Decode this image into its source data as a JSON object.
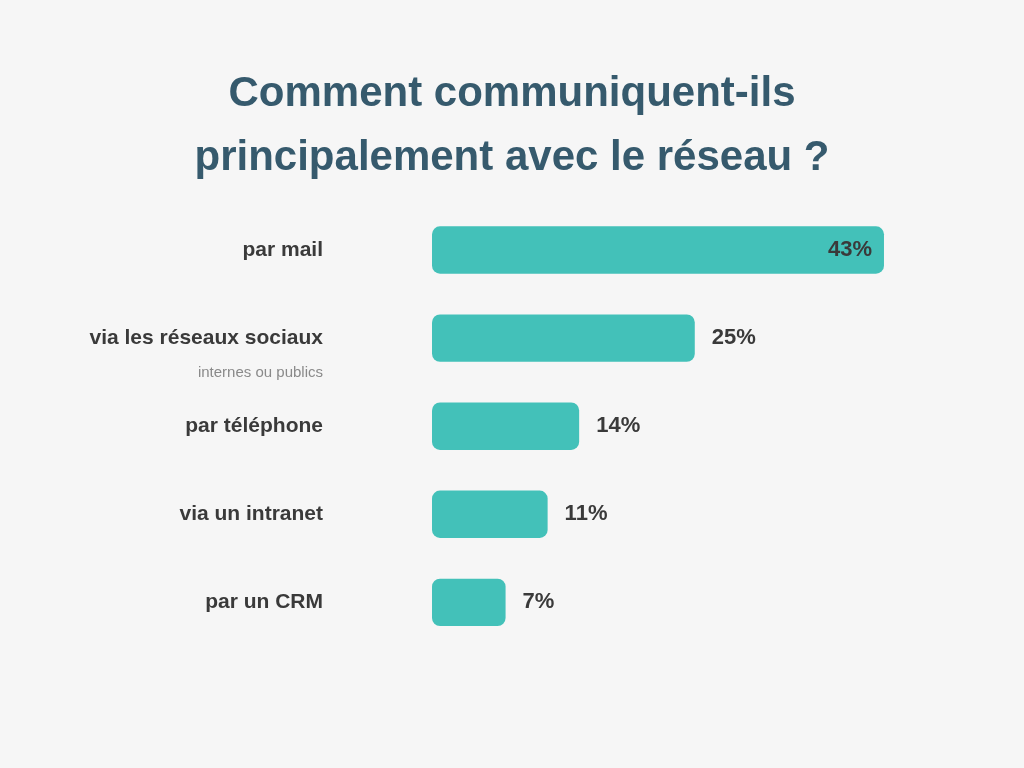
{
  "chart_data": {
    "type": "bar",
    "orientation": "horizontal",
    "title": "Comment communiquent-ils principalement avec le réseau ?",
    "categories": [
      "par mail",
      "via les réseaux sociaux",
      "par téléphone",
      "via un intranet",
      "par un CRM"
    ],
    "values": [
      43,
      25,
      14,
      11,
      7
    ],
    "value_labels": [
      "43%",
      "25%",
      "14%",
      "11%",
      "7%"
    ],
    "color": "#43c1b9",
    "tick_labels": "y",
    "annotations": [
      "internes ou publics"
    ]
  }
}
